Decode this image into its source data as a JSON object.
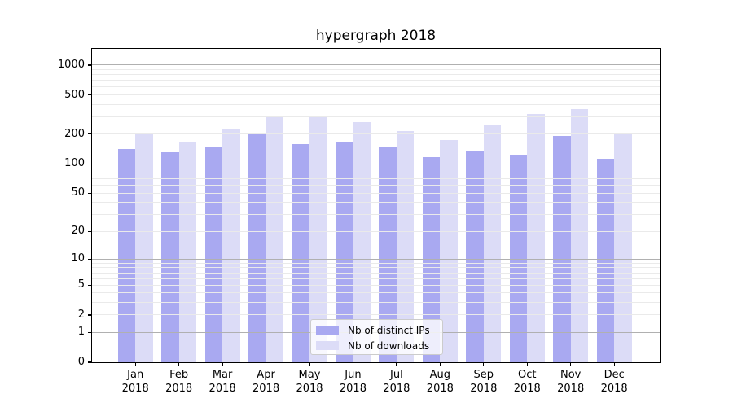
{
  "chart_data": {
    "type": "bar",
    "title": "hypergraph 2018",
    "categories": [
      "Jan",
      "Feb",
      "Mar",
      "Apr",
      "May",
      "Jun",
      "Jul",
      "Aug",
      "Sep",
      "Oct",
      "Nov",
      "Dec"
    ],
    "x_year_label": "2018",
    "series": [
      {
        "name": "Nb of distinct IPs",
        "color": "#a9a9f1",
        "values": [
          142,
          130,
          147,
          203,
          158,
          167,
          148,
          116,
          136,
          122,
          191,
          112
        ]
      },
      {
        "name": "Nb of downloads",
        "color": "#dcdcf7",
        "values": [
          208,
          169,
          222,
          295,
          310,
          265,
          215,
          174,
          244,
          320,
          359,
          208
        ]
      }
    ],
    "yscale": "log1p",
    "ylim": [
      0,
      1460
    ],
    "yticks": [
      1000,
      500,
      200,
      100,
      50,
      20,
      10,
      5,
      2,
      1,
      0
    ],
    "grid": {
      "major_values": [
        1,
        10,
        100,
        1000
      ],
      "minor_values": [
        2,
        3,
        4,
        5,
        6,
        7,
        8,
        9,
        20,
        30,
        40,
        50,
        60,
        70,
        80,
        90,
        200,
        300,
        400,
        500,
        600,
        700,
        800,
        900
      ],
      "major_color": "#b0b0b0",
      "minor_color": "#eaeaea"
    },
    "legend_position": "lower center",
    "axis_color": "#000000",
    "background_color": "#ffffff"
  }
}
